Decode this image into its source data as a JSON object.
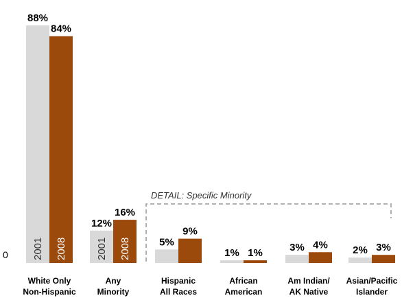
{
  "chart_data": {
    "type": "bar",
    "categories": [
      [
        "White Only",
        "Non-Hispanic"
      ],
      [
        "Any",
        "Minority"
      ],
      [
        "Hispanic",
        "All Races"
      ],
      [
        "African",
        "American"
      ],
      [
        "Am Indian/",
        "AK Native"
      ],
      [
        "Asian/Pacific",
        "Islander"
      ]
    ],
    "series": [
      {
        "name": "2001",
        "values": [
          88,
          12,
          5,
          1,
          3,
          2
        ],
        "value_labels": [
          "88%",
          "12%",
          "5%",
          "1%",
          "3%",
          "2%"
        ]
      },
      {
        "name": "2008",
        "values": [
          84,
          16,
          9,
          1,
          4,
          3
        ],
        "value_labels": [
          "84%",
          "16%",
          "9%",
          "1%",
          "4%",
          "3%"
        ]
      }
    ],
    "in_bar_year_labels": [
      "2001",
      "2008"
    ],
    "y_zero_label": "0",
    "ylim": [
      0,
      88
    ],
    "grid": false,
    "annotation": "DETAIL: Specific Minority",
    "colors": {
      "2001": "#d9d9d9",
      "2008": "#9c4a0c",
      "bracket": "#999999"
    }
  }
}
